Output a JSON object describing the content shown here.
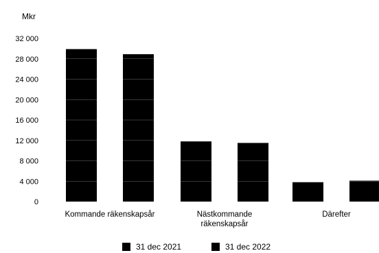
{
  "chart_data": {
    "type": "bar",
    "unit": "Mkr",
    "categories": [
      [
        "Kommande räkenskapsår"
      ],
      [
        "Nästkommande",
        "räkenskapsår"
      ],
      [
        "Därefter"
      ]
    ],
    "series": [
      {
        "name": "31 dec 2021",
        "values": [
          29900,
          11800,
          3800
        ],
        "color": "#000000"
      },
      {
        "name": "31 dec 2022",
        "values": [
          28900,
          11500,
          4100
        ],
        "color": "#000000"
      }
    ],
    "ylim": [
      0,
      32000
    ],
    "yticks": [
      0,
      4000,
      8000,
      12000,
      16000,
      20000,
      24000,
      28000,
      32000
    ],
    "ytick_labels": [
      "0",
      "4 000",
      "8 000",
      "12 000",
      "16 000",
      "20 000",
      "24 000",
      "28 000",
      "32 000"
    ],
    "grid": "horizontal, visible only through bars",
    "legend": "bottom-center"
  }
}
